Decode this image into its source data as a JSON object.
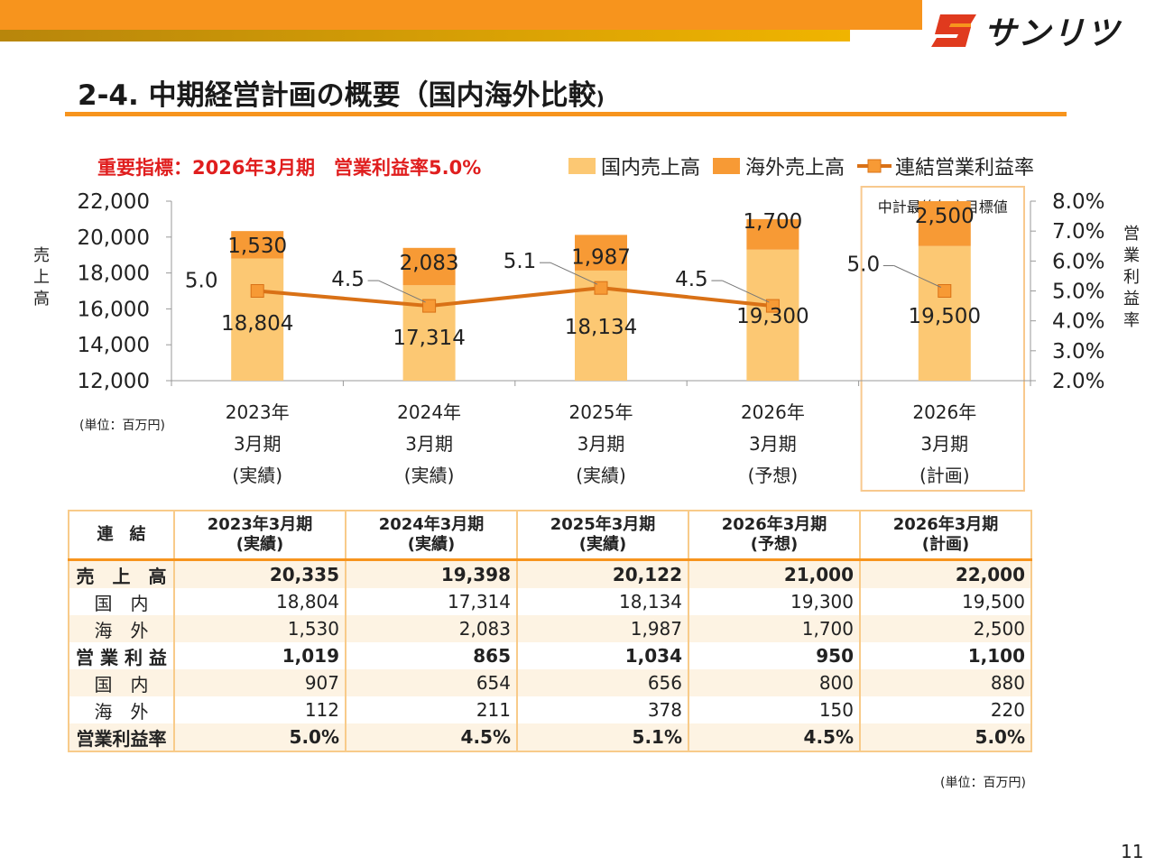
{
  "header": {
    "title": "2-4. 中期経営計画の概要（国内海外比較",
    "title_suffix": ")",
    "logo_text": "サンリツ",
    "page_number": "11"
  },
  "kpi_note": "重要指標：2026年3月期　営業利益率5.0%",
  "legend": {
    "domestic": "国内売上高",
    "overseas": "海外売上高",
    "margin": "連結営業利益率"
  },
  "labels": {
    "left_axis": "売上高",
    "right_axis": "営業利益率",
    "target_box": "中計最終年度目標値",
    "unit_chart": "(単位：百万円)",
    "unit_table": "(単位：百万円)"
  },
  "colors": {
    "domestic": "#fcc873",
    "overseas": "#f79a35",
    "margin_line": "#d97116",
    "accent": "#f7941d",
    "kpi_text": "#e01e1e"
  },
  "chart_data": {
    "type": "bar",
    "stacked": true,
    "categories": [
      [
        "2023年",
        "3月期",
        "(実績)"
      ],
      [
        "2024年",
        "3月期",
        "(実績)"
      ],
      [
        "2025年",
        "3月期",
        "(実績)"
      ],
      [
        "2026年",
        "3月期",
        "(予想)"
      ],
      [
        "2026年",
        "3月期",
        "(計画)"
      ]
    ],
    "series": [
      {
        "name": "国内売上高",
        "values": [
          18804,
          17314,
          18134,
          19300,
          19500
        ],
        "labels": [
          "18,804",
          "17,314",
          "18,134",
          "19,300",
          "19,500"
        ]
      },
      {
        "name": "海外売上高",
        "values": [
          1530,
          2083,
          1987,
          1700,
          2500
        ],
        "labels": [
          "1,530",
          "2,083",
          "1,987",
          "1,700",
          "2,500"
        ]
      },
      {
        "name": "連結営業利益率",
        "type": "line",
        "axis": "right",
        "values": [
          5.0,
          4.5,
          5.1,
          4.5,
          5.0
        ],
        "labels": [
          "5.0",
          "4.5",
          "5.1",
          "4.5",
          "5.0"
        ]
      }
    ],
    "y_left": {
      "min": 12000,
      "max": 22000,
      "ticks": [
        "12,000",
        "14,000",
        "16,000",
        "18,000",
        "20,000",
        "22,000"
      ]
    },
    "y_right": {
      "min": 2.0,
      "max": 8.0,
      "ticks": [
        "2.0%",
        "3.0%",
        "4.0%",
        "5.0%",
        "6.0%",
        "7.0%",
        "8.0%"
      ]
    },
    "grid": false,
    "legend_position": "top"
  },
  "table": {
    "corner": "連　結",
    "columns": [
      [
        "2023年3月期",
        "(実績)"
      ],
      [
        "2024年3月期",
        "(実績)"
      ],
      [
        "2025年3月期",
        "(実績)"
      ],
      [
        "2026年3月期",
        "(予想)"
      ],
      [
        "2026年3月期",
        "(計画)"
      ]
    ],
    "rows": [
      {
        "label": "売　上　高",
        "values": [
          "20,335",
          "19,398",
          "20,122",
          "21,000",
          "22,000"
        ],
        "bold": true
      },
      {
        "label": "国　内",
        "values": [
          "18,804",
          "17,314",
          "18,134",
          "19,300",
          "19,500"
        ],
        "bold": false
      },
      {
        "label": "海　外",
        "values": [
          "1,530",
          "2,083",
          "1,987",
          "1,700",
          "2,500"
        ],
        "bold": false
      },
      {
        "label": "営 業 利 益",
        "values": [
          "1,019",
          "865",
          "1,034",
          "950",
          "1,100"
        ],
        "bold": true
      },
      {
        "label": "国　内",
        "values": [
          "907",
          "654",
          "656",
          "800",
          "880"
        ],
        "bold": false
      },
      {
        "label": "海　外",
        "values": [
          "112",
          "211",
          "378",
          "150",
          "220"
        ],
        "bold": false
      },
      {
        "label": "営業利益率",
        "values": [
          "5.0%",
          "4.5%",
          "5.1%",
          "4.5%",
          "5.0%"
        ],
        "bold": true
      }
    ]
  }
}
